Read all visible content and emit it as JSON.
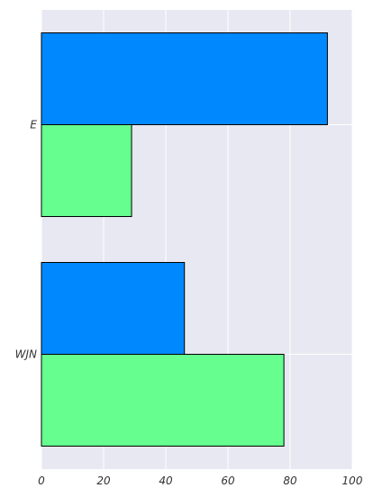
{
  "chart_data": {
    "type": "bar",
    "orientation": "horizontal",
    "categories": [
      "E",
      "WJN"
    ],
    "series": [
      {
        "values": [
          92,
          46
        ],
        "color": "#0088ff"
      },
      {
        "values": [
          29,
          78
        ],
        "color": "#66ff8f"
      }
    ],
    "xlim": [
      0,
      100
    ],
    "x_ticks": [
      "0",
      "20",
      "40",
      "60",
      "80",
      "100"
    ],
    "grid": true,
    "background_color": "#e8e8f2",
    "title": "",
    "xlabel": "",
    "ylabel": ""
  }
}
